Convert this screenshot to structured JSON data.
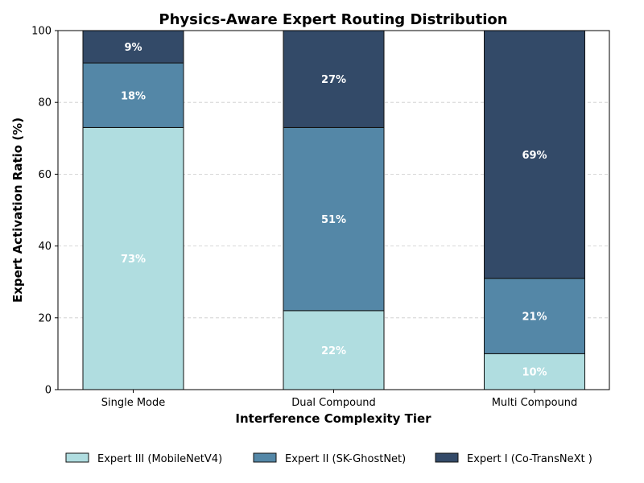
{
  "chart_data": {
    "type": "bar",
    "stacked": true,
    "title": "Physics-Aware Expert Routing Distribution",
    "xlabel": "Interference Complexity Tier",
    "ylabel": "Expert Activation Ratio (%)",
    "ylim": [
      0,
      100
    ],
    "yticks": [
      0,
      20,
      40,
      60,
      80,
      100
    ],
    "grid": "horizontal-dashed",
    "legend_position": "bottom",
    "categories": [
      "Single Mode",
      "Dual Compound",
      "Multi Compound"
    ],
    "series": [
      {
        "name": "Expert III (MobileNetV4)",
        "values": [
          73,
          22,
          10
        ],
        "labels": [
          "73%",
          "22%",
          "10%"
        ],
        "color": "#b0dde0"
      },
      {
        "name": "Expert II (SK-GhostNet)",
        "values": [
          18,
          51,
          21
        ],
        "labels": [
          "18%",
          "51%",
          "21%"
        ],
        "color": "#5487a7"
      },
      {
        "name": "Expert I (Co-TransNeXt )",
        "values": [
          9,
          27,
          69
        ],
        "labels": [
          "9%",
          "27%",
          "69%"
        ],
        "color": "#334a68"
      }
    ]
  }
}
